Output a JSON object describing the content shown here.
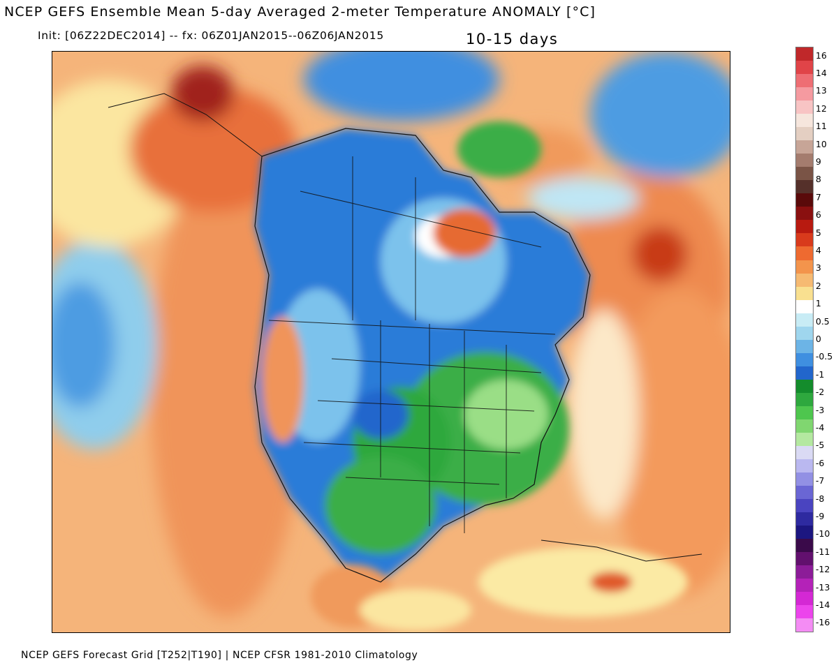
{
  "header": {
    "title": "NCEP GEFS Ensemble Mean 5-day Averaged 2-meter Temperature ANOMALY [°C]",
    "init_line": "Init: [06Z22DEC2014] -- fx: 06Z01JAN2015--06Z06JAN2015",
    "period": "10-15 days"
  },
  "footer": {
    "credit": "NCEP GEFS Forecast Grid [T252|T190] | NCEP CFSR 1981-2010 Climatology"
  },
  "colorbar": {
    "labels": [
      "16",
      "14",
      "13",
      "12",
      "11",
      "10",
      "9",
      "8",
      "7",
      "6",
      "5",
      "4",
      "3",
      "2",
      "1",
      "0.5",
      "0",
      "-0.5",
      "-1",
      "-2",
      "-3",
      "-4",
      "-5",
      "-6",
      "-7",
      "-8",
      "-9",
      "-10",
      "-11",
      "-12",
      "-13",
      "-14",
      "-16"
    ],
    "colors": [
      "#c0282a",
      "#e04448",
      "#ee6e74",
      "#f59aa0",
      "#f8c4c4",
      "#f6e6dd",
      "#e4cfc2",
      "#c7a597",
      "#a47c6e",
      "#7a5446",
      "#55302a",
      "#5a0a0a",
      "#8a1010",
      "#b81a10",
      "#d83a1c",
      "#ee6a30",
      "#f3944c",
      "#f6ba72",
      "#f9e090",
      "#ffffff",
      "#c8ecf5",
      "#9fd6ee",
      "#6cb4e6",
      "#3f8fe0",
      "#2266cc",
      "#148c2c",
      "#2ea83e",
      "#4ec64e",
      "#80d670",
      "#b4e8a0",
      "#dadaf4",
      "#bab8f0",
      "#9290e4",
      "#6a66d4",
      "#4a44c0",
      "#2e2aa0",
      "#1c1680",
      "#3a0a4a",
      "#62106e",
      "#8c1c98",
      "#b422b8",
      "#d428d4",
      "#ec44ec",
      "#f48cf4"
    ]
  },
  "map": {
    "colors": {
      "ocean_warm": "#f7c784",
      "warm_orange": "#f09a5c",
      "hot_red": "#d8461c",
      "very_hot": "#8a1010",
      "neutral_yellow": "#fbeaa4",
      "white": "#ffffff",
      "light_blue": "#9fd6ee",
      "blue": "#3f8fe0",
      "dark_blue": "#2266cc",
      "green": "#2ea83e",
      "light_green": "#80d670",
      "pale_green": "#c8ecb8",
      "outline": "#111111"
    }
  }
}
